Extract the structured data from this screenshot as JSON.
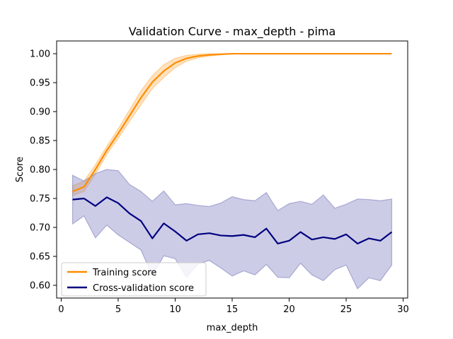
{
  "chart_data": {
    "type": "line",
    "title": "Validation Curve - max_depth - pima",
    "xlabel": "max_depth",
    "ylabel": "Score",
    "xlim": [
      -0.4,
      30.4
    ],
    "ylim": [
      0.578,
      1.022
    ],
    "xticks": [
      0,
      5,
      10,
      15,
      20,
      25,
      30
    ],
    "yticks": [
      0.6,
      0.65,
      0.7,
      0.75,
      0.8,
      0.85,
      0.9,
      0.95,
      1.0
    ],
    "ytick_labels": [
      "0.60",
      "0.65",
      "0.70",
      "0.75",
      "0.80",
      "0.85",
      "0.90",
      "0.95",
      "1.00"
    ],
    "grid": false,
    "legend_position": "lower-left",
    "x": [
      1,
      2,
      3,
      4,
      5,
      6,
      7,
      8,
      9,
      10,
      11,
      12,
      13,
      14,
      15,
      16,
      17,
      18,
      19,
      20,
      21,
      22,
      23,
      24,
      25,
      26,
      27,
      28,
      29
    ],
    "series": [
      {
        "name": "Training score",
        "color": "#ff8c00",
        "values": [
          0.762,
          0.77,
          0.8,
          0.833,
          0.862,
          0.893,
          0.924,
          0.951,
          0.97,
          0.984,
          0.992,
          0.996,
          0.998,
          0.999,
          1.0,
          1.0,
          1.0,
          1.0,
          1.0,
          1.0,
          1.0,
          1.0,
          1.0,
          1.0,
          1.0,
          1.0,
          1.0,
          1.0,
          1.0
        ],
        "band_upper": [
          0.772,
          0.78,
          0.808,
          0.84,
          0.87,
          0.903,
          0.936,
          0.962,
          0.981,
          0.992,
          0.997,
          0.999,
          1.0,
          1.0,
          1.0,
          1.0,
          1.0,
          1.0,
          1.0,
          1.0,
          1.0,
          1.0,
          1.0,
          1.0,
          1.0,
          1.0,
          1.0,
          1.0,
          1.0
        ],
        "band_lower": [
          0.755,
          0.762,
          0.792,
          0.826,
          0.854,
          0.883,
          0.912,
          0.94,
          0.959,
          0.976,
          0.987,
          0.993,
          0.996,
          0.998,
          1.0,
          1.0,
          1.0,
          1.0,
          1.0,
          1.0,
          1.0,
          1.0,
          1.0,
          1.0,
          1.0,
          1.0,
          1.0,
          1.0,
          1.0
        ]
      },
      {
        "name": "Cross-validation score",
        "color": "#000080",
        "band_color": "#8080c0",
        "values": [
          0.748,
          0.75,
          0.737,
          0.752,
          0.742,
          0.724,
          0.711,
          0.681,
          0.707,
          0.693,
          0.677,
          0.688,
          0.69,
          0.686,
          0.685,
          0.687,
          0.683,
          0.698,
          0.672,
          0.677,
          0.692,
          0.679,
          0.683,
          0.68,
          0.688,
          0.672,
          0.681,
          0.677,
          0.692
        ],
        "band_upper": [
          0.79,
          0.78,
          0.793,
          0.8,
          0.798,
          0.774,
          0.762,
          0.745,
          0.763,
          0.739,
          0.741,
          0.738,
          0.736,
          0.742,
          0.753,
          0.748,
          0.746,
          0.76,
          0.729,
          0.741,
          0.745,
          0.74,
          0.756,
          0.733,
          0.74,
          0.749,
          0.748,
          0.746,
          0.749
        ],
        "band_lower": [
          0.706,
          0.72,
          0.682,
          0.704,
          0.687,
          0.674,
          0.661,
          0.617,
          0.651,
          0.646,
          0.614,
          0.637,
          0.643,
          0.63,
          0.616,
          0.625,
          0.618,
          0.636,
          0.614,
          0.613,
          0.638,
          0.618,
          0.608,
          0.627,
          0.635,
          0.594,
          0.613,
          0.608,
          0.635
        ]
      }
    ]
  }
}
